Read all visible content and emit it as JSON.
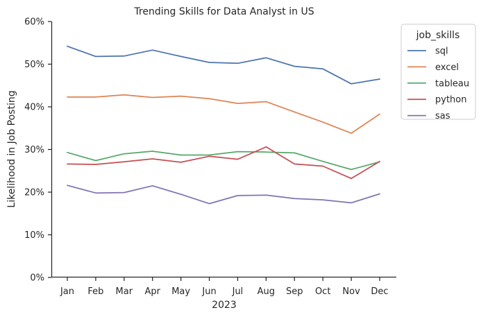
{
  "chart_data": {
    "type": "line",
    "title": "Trending Skills for Data Analyst in US",
    "xlabel": "2023",
    "ylabel": "Likelihood in Job Posting",
    "categories": [
      "Jan",
      "Feb",
      "Mar",
      "Apr",
      "May",
      "Jun",
      "Jul",
      "Aug",
      "Sep",
      "Oct",
      "Nov",
      "Dec"
    ],
    "ylim": [
      0,
      60
    ],
    "yticks": [
      0,
      10,
      20,
      30,
      40,
      50,
      60
    ],
    "ytick_labels": [
      "0%",
      "10%",
      "20%",
      "30%",
      "40%",
      "50%",
      "60%"
    ],
    "grid": false,
    "legend": {
      "title": "job_skills",
      "placement": "outside-right-top"
    },
    "series": [
      {
        "name": "sql",
        "color": "#4c72b0",
        "values": [
          54.2,
          51.8,
          51.9,
          53.3,
          51.8,
          50.4,
          50.2,
          51.5,
          49.5,
          48.9,
          45.4,
          46.5
        ]
      },
      {
        "name": "excel",
        "color": "#dd8452",
        "values": [
          42.3,
          42.3,
          42.8,
          42.2,
          42.5,
          41.9,
          40.8,
          41.2,
          38.8,
          36.4,
          33.8,
          38.3
        ]
      },
      {
        "name": "tableau",
        "color": "#55a868",
        "values": [
          29.3,
          27.4,
          29.0,
          29.6,
          28.7,
          28.7,
          29.5,
          29.4,
          29.2,
          27.2,
          25.3,
          27.1
        ]
      },
      {
        "name": "python",
        "color": "#c44e52",
        "values": [
          26.6,
          26.5,
          27.1,
          27.8,
          27.0,
          28.4,
          27.7,
          30.6,
          26.6,
          26.1,
          23.2,
          27.2
        ]
      },
      {
        "name": "sas",
        "color": "#8172b3",
        "values": [
          21.6,
          19.8,
          19.9,
          21.5,
          19.5,
          17.3,
          19.2,
          19.3,
          18.5,
          18.2,
          17.5,
          19.6
        ]
      }
    ]
  }
}
